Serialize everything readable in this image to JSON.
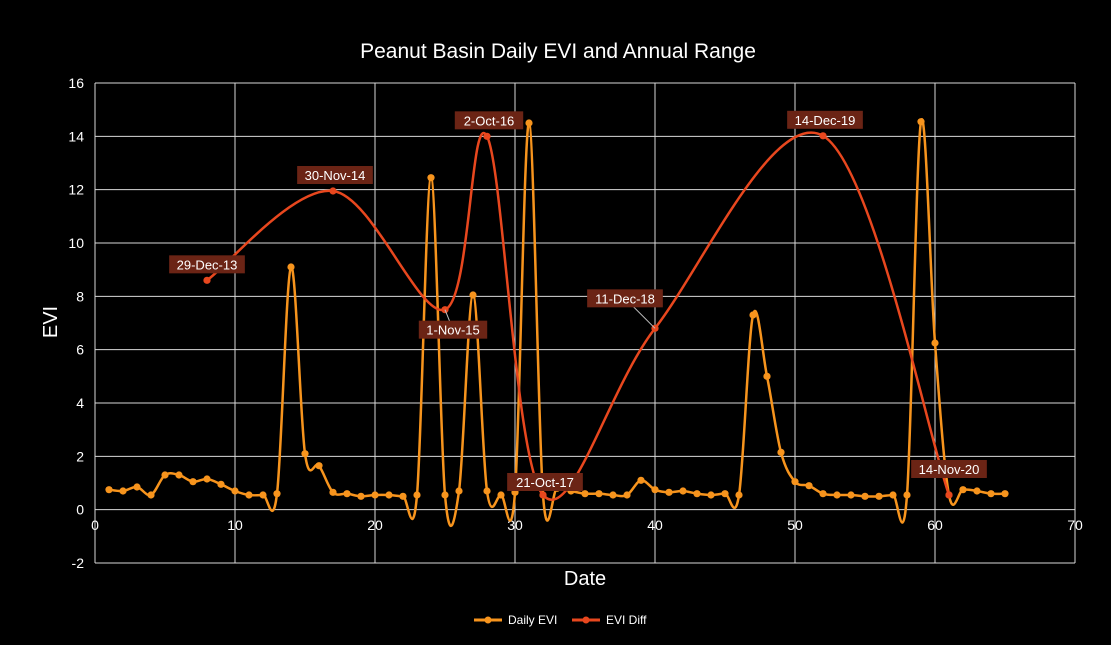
{
  "chart_data": {
    "type": "line",
    "title": "Peanut Basin Daily EVI and Annual Range",
    "xlabel": "Date",
    "ylabel": "EVI",
    "xlim": [
      0,
      70
    ],
    "ylim": [
      -2,
      16
    ],
    "xticks": [
      0,
      10,
      20,
      30,
      40,
      50,
      60,
      70
    ],
    "yticks": [
      -2,
      0,
      2,
      4,
      6,
      8,
      10,
      12,
      14,
      16
    ],
    "grid": true,
    "legend_position": "bottom",
    "series": [
      {
        "name": "Daily EVI",
        "color": "#F7941D",
        "smooth": true,
        "x": [
          1,
          2,
          3,
          4,
          5,
          6,
          7,
          8,
          9,
          10,
          11,
          12,
          13,
          14,
          15,
          16,
          17,
          18,
          19,
          20,
          21,
          22,
          23,
          24,
          25,
          26,
          27,
          28,
          29,
          30,
          31,
          32,
          33,
          34,
          35,
          36,
          37,
          38,
          39,
          40,
          41,
          42,
          43,
          44,
          45,
          46,
          47,
          48,
          49,
          50,
          51,
          52,
          53,
          54,
          55,
          56,
          57,
          58,
          59,
          60,
          61,
          62,
          63,
          64,
          65
        ],
        "y": [
          0.75,
          0.7,
          0.85,
          0.55,
          1.3,
          1.3,
          1.05,
          1.15,
          0.95,
          0.7,
          0.55,
          0.55,
          0.6,
          9.1,
          2.1,
          1.65,
          0.65,
          0.6,
          0.5,
          0.55,
          0.55,
          0.5,
          0.55,
          12.45,
          0.55,
          0.7,
          8.05,
          0.7,
          0.55,
          0.65,
          14.5,
          0.55,
          0.8,
          0.7,
          0.6,
          0.6,
          0.55,
          0.55,
          1.1,
          0.75,
          0.65,
          0.7,
          0.6,
          0.55,
          0.6,
          0.55,
          7.3,
          5.0,
          2.15,
          1.05,
          0.9,
          0.6,
          0.55,
          0.55,
          0.5,
          0.5,
          0.55,
          0.55,
          14.55,
          6.25,
          0.55,
          0.75,
          0.7,
          0.6,
          0.6
        ]
      },
      {
        "name": "EVI Diff",
        "color": "#E8471E",
        "smooth": true,
        "x": [
          8,
          17,
          25,
          28,
          32,
          40,
          52,
          61
        ],
        "y": [
          8.6,
          11.95,
          7.5,
          14.0,
          0.55,
          6.8,
          14.02,
          0.55
        ],
        "labels": [
          "29-Dec-13",
          "30-Nov-14",
          "1-Nov-15",
          "2-Oct-16",
          "21-Oct-17",
          "11-Dec-18",
          "14-Dec-19",
          "14-Nov-20"
        ]
      }
    ]
  }
}
